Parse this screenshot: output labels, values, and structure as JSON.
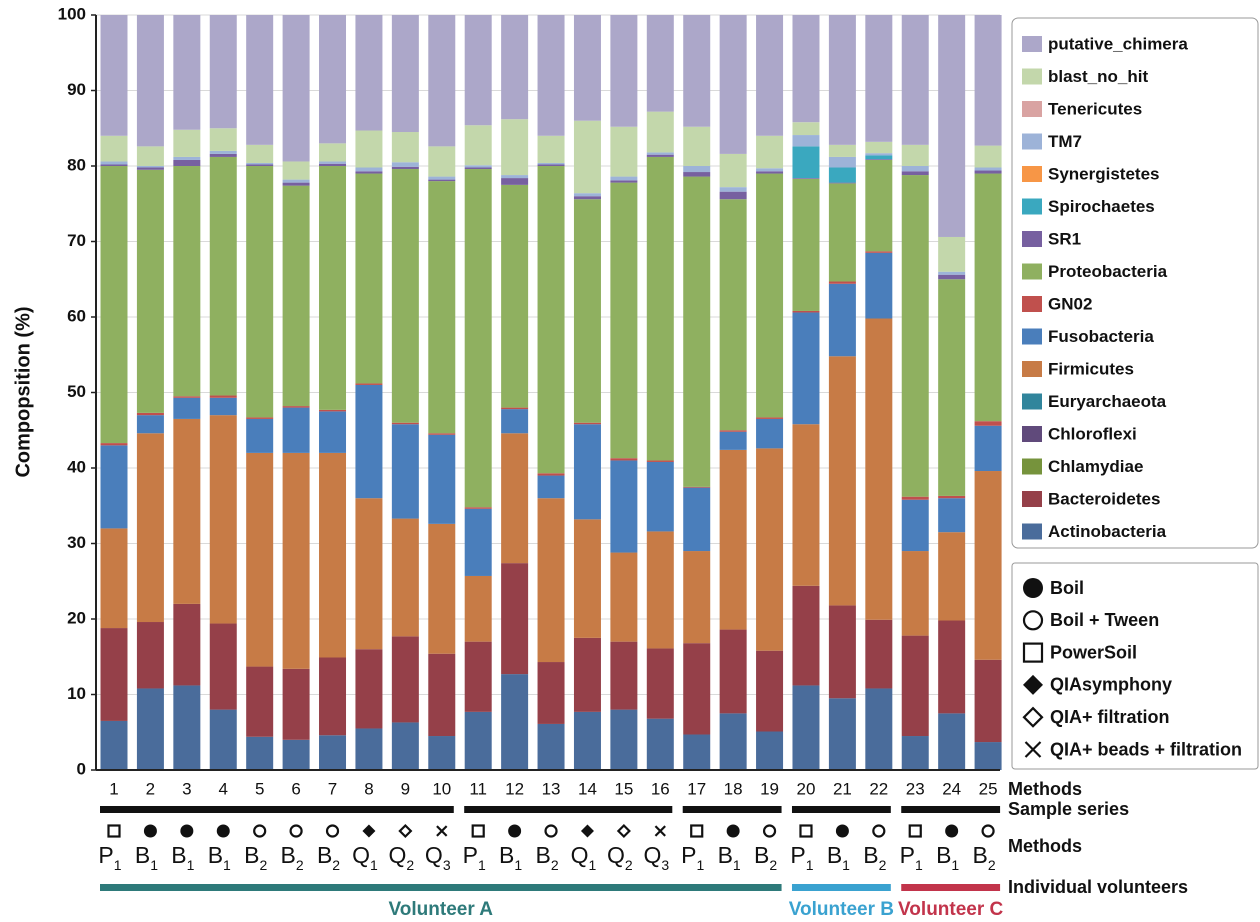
{
  "chart_data": {
    "type": "stacked_bar",
    "ylabel": "Compopsition (%)",
    "ylim": [
      0,
      100
    ],
    "yticks": [
      0,
      10,
      20,
      30,
      40,
      50,
      60,
      70,
      80,
      90,
      100
    ],
    "grid": true,
    "legend": "right",
    "categories": [
      "1",
      "2",
      "3",
      "4",
      "5",
      "6",
      "7",
      "8",
      "9",
      "10",
      "11",
      "12",
      "13",
      "14",
      "15",
      "16",
      "17",
      "18",
      "19",
      "20",
      "21",
      "22",
      "23",
      "24",
      "25"
    ],
    "series": [
      {
        "name": "Actinobacteria",
        "color": "#4a6c9b",
        "values": [
          6.5,
          10.8,
          11.2,
          8,
          4.4,
          4,
          4.6,
          5.5,
          6.3,
          4.5,
          7.7,
          12.7,
          6.1,
          7.7,
          8,
          6.8,
          4.7,
          7.5,
          5.1,
          11.2,
          9.5,
          10.8,
          4.5,
          7.5,
          3.7
        ]
      },
      {
        "name": "Bacteroidetes",
        "color": "#954049",
        "values": [
          12.3,
          8.8,
          10.8,
          11.4,
          9.3,
          9.4,
          10.3,
          10.5,
          11.4,
          10.9,
          9.3,
          14.7,
          8.2,
          9.8,
          9,
          9.3,
          12.1,
          11.1,
          10.7,
          13.2,
          12.3,
          9.1,
          13.3,
          12.3,
          10.9
        ]
      },
      {
        "name": "Chlamydiae",
        "color": "#76933c",
        "values": [
          0,
          0,
          0,
          0,
          0,
          0,
          0,
          0,
          0,
          0,
          0,
          0,
          0,
          0,
          0,
          0,
          0,
          0,
          0,
          0,
          0,
          0,
          0,
          0,
          0
        ]
      },
      {
        "name": "Chloroflexi",
        "color": "#604a7b",
        "values": [
          0,
          0,
          0,
          0,
          0,
          0,
          0,
          0,
          0,
          0,
          0,
          0,
          0,
          0,
          0,
          0,
          0,
          0,
          0,
          0,
          0,
          0,
          0,
          0,
          0
        ]
      },
      {
        "name": "Euryarchaeota",
        "color": "#31859c",
        "values": [
          0,
          0,
          0,
          0,
          0,
          0,
          0,
          0,
          0,
          0,
          0,
          0,
          0,
          0,
          0,
          0,
          0,
          0,
          0,
          0,
          0,
          0,
          0,
          0,
          0
        ]
      },
      {
        "name": "Firmicutes",
        "color": "#c77b46",
        "values": [
          13.2,
          25,
          24.5,
          27.6,
          28.3,
          28.6,
          27.1,
          20,
          15.6,
          17.2,
          8.7,
          17.2,
          21.7,
          15.7,
          11.8,
          15.5,
          12.2,
          23.8,
          26.8,
          21.4,
          33,
          39.9,
          11.2,
          11.7,
          25
        ]
      },
      {
        "name": "Fusobacteria",
        "color": "#4a7ebb",
        "values": [
          11,
          2.4,
          2.8,
          2.3,
          4.5,
          6,
          5.5,
          15,
          12.5,
          11.8,
          8.9,
          3.2,
          3,
          12.6,
          12.2,
          9.2,
          8.4,
          2.4,
          3.9,
          14.8,
          9.6,
          8.7,
          6.8,
          4.5,
          6
        ]
      },
      {
        "name": "GN02",
        "color": "#c0504d",
        "values": [
          0.3,
          0.3,
          0.2,
          0.3,
          0.2,
          0.2,
          0.2,
          0.2,
          0.2,
          0.2,
          0.2,
          0.2,
          0.3,
          0.2,
          0.3,
          0.2,
          0.1,
          0.2,
          0.2,
          0.2,
          0.3,
          0.2,
          0.4,
          0.3,
          0.6
        ]
      },
      {
        "name": "Proteobacteria",
        "color": "#8fb060",
        "values": [
          36.7,
          32.2,
          30.5,
          31.6,
          33.3,
          29.2,
          32.3,
          27.8,
          33.6,
          33.4,
          44.8,
          29.5,
          40.7,
          29.6,
          36.5,
          40.2,
          41.1,
          30.6,
          32.3,
          17.5,
          13,
          12.1,
          42.6,
          28.7,
          32.8
        ]
      },
      {
        "name": "SR1",
        "color": "#7760a0",
        "values": [
          0.2,
          0.3,
          0.8,
          0.4,
          0.2,
          0.4,
          0.3,
          0.3,
          0.3,
          0.2,
          0.2,
          0.9,
          0.2,
          0.4,
          0.3,
          0.3,
          0.6,
          1,
          0.3,
          0.1,
          0.1,
          0.1,
          0.5,
          0.6,
          0.4
        ]
      },
      {
        "name": "Spirochaetes",
        "color": "#3aa8bf",
        "values": [
          0,
          0,
          0,
          0,
          0,
          0,
          0,
          0,
          0,
          0,
          0,
          0,
          0,
          0,
          0,
          0,
          0,
          0,
          0,
          4.2,
          2,
          0.5,
          0,
          0,
          0
        ]
      },
      {
        "name": "Synergistetes",
        "color": "#f79646",
        "values": [
          0,
          0,
          0,
          0,
          0,
          0,
          0,
          0,
          0,
          0,
          0,
          0,
          0,
          0,
          0,
          0,
          0,
          0,
          0,
          0,
          0,
          0,
          0,
          0,
          0
        ]
      },
      {
        "name": "TM7",
        "color": "#9db3d8",
        "values": [
          0.4,
          0.2,
          0.4,
          0.4,
          0.2,
          0.4,
          0.3,
          0.5,
          0.6,
          0.4,
          0.3,
          0.4,
          0.2,
          0.4,
          0.5,
          0.3,
          0.8,
          0.6,
          0.4,
          1.5,
          1.4,
          0.3,
          0.7,
          0.4,
          0.4
        ]
      },
      {
        "name": "Tenericutes",
        "color": "#d9a3a2",
        "values": [
          0,
          0,
          0,
          0,
          0,
          0,
          0,
          0,
          0,
          0,
          0,
          0,
          0,
          0,
          0,
          0,
          0,
          0,
          0,
          0,
          0,
          0,
          0,
          0,
          0
        ]
      },
      {
        "name": "blast_no_hit",
        "color": "#c3d7ab",
        "values": [
          3.4,
          2.6,
          3.6,
          3,
          2.4,
          2.4,
          2.4,
          4.9,
          4,
          4,
          5.3,
          7.4,
          3.6,
          9.6,
          6.6,
          5.4,
          5.2,
          4.4,
          4.3,
          1.7,
          1.6,
          1.5,
          2.8,
          4.6,
          2.9
        ]
      },
      {
        "name": "putative_chimera",
        "color": "#aca7c9",
        "values": [
          16,
          17.4,
          15.2,
          15,
          17.2,
          19.4,
          17,
          15.3,
          15.5,
          17.4,
          14.6,
          13.8,
          16,
          14,
          14.8,
          12.8,
          14.8,
          18.4,
          16,
          14.2,
          17.2,
          16.8,
          17.2,
          29.4,
          17.3
        ]
      }
    ],
    "row_labels": [
      "Methods",
      "Sample series",
      "Methods",
      "Individual volunteers"
    ],
    "method_markers": [
      "square",
      "circle",
      "circle",
      "circle",
      "open-circle",
      "open-circle",
      "open-circle",
      "diamond",
      "open-diamond",
      "x",
      "square",
      "circle",
      "open-circle",
      "diamond",
      "open-diamond",
      "x",
      "square",
      "circle",
      "open-circle",
      "square",
      "circle",
      "open-circle",
      "square",
      "circle",
      "open-circle"
    ],
    "method_letters": [
      "P",
      "B",
      "B",
      "B",
      "B",
      "B",
      "B",
      "Q",
      "Q",
      "Q",
      "P",
      "B",
      "B",
      "Q",
      "Q",
      "Q",
      "P",
      "B",
      "B",
      "P",
      "B",
      "B",
      "P",
      "B",
      "B"
    ],
    "method_subs": [
      "1",
      "1",
      "1",
      "1",
      "2",
      "2",
      "2",
      "1",
      "2",
      "3",
      "1",
      "1",
      "2",
      "1",
      "2",
      "3",
      "1",
      "1",
      "2",
      "1",
      "1",
      "2",
      "1",
      "1",
      "2"
    ],
    "methods_legend": [
      {
        "name": "Boil",
        "marker": "circle"
      },
      {
        "name": "Boil + Tween",
        "marker": "open-circle"
      },
      {
        "name": "PowerSoil",
        "marker": "square"
      },
      {
        "name": "QIAsymphony",
        "marker": "diamond"
      },
      {
        "name": "QIA+ filtration",
        "marker": "open-diamond"
      },
      {
        "name": "QIA+ beads + filtration",
        "marker": "x"
      }
    ],
    "volunteers": [
      {
        "name": "Volunteer A",
        "color": "#2e7a7a"
      },
      {
        "name": "Volunteer B",
        "color": "#3aa2d0"
      },
      {
        "name": "Volunteer C",
        "color": "#c2344b"
      }
    ]
  }
}
